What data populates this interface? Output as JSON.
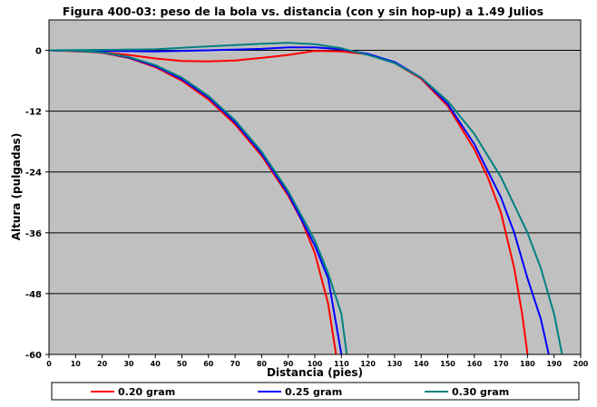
{
  "chart_data": {
    "type": "line",
    "title": "Figura 400-03: peso de la bola vs. distancia (con y sin hop-up) a 1.49 Julios",
    "xlabel": "Distancia (pies)",
    "ylabel": "Altura (pulgadas)",
    "xlim": [
      0,
      200
    ],
    "ylim": [
      -60,
      6
    ],
    "x_ticks": [
      "0",
      "10",
      "20",
      "30",
      "40",
      "50",
      "60",
      "70",
      "80",
      "90",
      "100",
      "110",
      "120",
      "130",
      "140",
      "150",
      "160",
      "170",
      "180",
      "190",
      "200"
    ],
    "y_ticks": [
      "0",
      "-12",
      "-24",
      "-36",
      "-48",
      "-60"
    ],
    "grid": "horizontal",
    "plot_background": "#c0c0c0",
    "legend_position": "bottom",
    "series": [
      {
        "name": "0.20 gram",
        "color": "#ff0000",
        "role": "sin hop-up",
        "points": [
          [
            0,
            0
          ],
          [
            10,
            -0.1
          ],
          [
            20,
            -0.5
          ],
          [
            30,
            -1.5
          ],
          [
            40,
            -3.3
          ],
          [
            50,
            -6.0
          ],
          [
            60,
            -9.7
          ],
          [
            70,
            -14.6
          ],
          [
            80,
            -20.8
          ],
          [
            90,
            -28.7
          ],
          [
            95,
            -33.5
          ],
          [
            100,
            -40.0
          ],
          [
            105,
            -50.0
          ],
          [
            108,
            -60.0
          ]
        ]
      },
      {
        "name": "0.20 gram",
        "color": "#ff0000",
        "role": "con hop-up",
        "points": [
          [
            0,
            0
          ],
          [
            20,
            -0.4
          ],
          [
            30,
            -0.9
          ],
          [
            40,
            -1.6
          ],
          [
            50,
            -2.1
          ],
          [
            60,
            -2.2
          ],
          [
            70,
            -2.0
          ],
          [
            80,
            -1.5
          ],
          [
            90,
            -0.9
          ],
          [
            100,
            -0.1
          ],
          [
            110,
            -0.2
          ],
          [
            120,
            -0.8
          ],
          [
            130,
            -2.5
          ],
          [
            140,
            -5.6
          ],
          [
            150,
            -11.0
          ],
          [
            160,
            -19.5
          ],
          [
            165,
            -25.0
          ],
          [
            170,
            -32.0
          ],
          [
            175,
            -43.0
          ],
          [
            178,
            -52.0
          ],
          [
            180,
            -60.0
          ]
        ]
      },
      {
        "name": "0.25 gram",
        "color": "#0000ff",
        "role": "sin hop-up",
        "points": [
          [
            0,
            0
          ],
          [
            10,
            -0.1
          ],
          [
            20,
            -0.4
          ],
          [
            30,
            -1.4
          ],
          [
            40,
            -3.1
          ],
          [
            50,
            -5.7
          ],
          [
            60,
            -9.3
          ],
          [
            70,
            -14.2
          ],
          [
            80,
            -20.4
          ],
          [
            90,
            -28.3
          ],
          [
            100,
            -38.5
          ],
          [
            105,
            -45.0
          ],
          [
            110,
            -60.0
          ]
        ]
      },
      {
        "name": "0.25 gram",
        "color": "#0000ff",
        "role": "con hop-up",
        "points": [
          [
            0,
            0
          ],
          [
            20,
            -0.1
          ],
          [
            40,
            -0.2
          ],
          [
            60,
            0.0
          ],
          [
            80,
            0.3
          ],
          [
            90,
            0.6
          ],
          [
            100,
            0.6
          ],
          [
            110,
            0.2
          ],
          [
            120,
            -0.7
          ],
          [
            130,
            -2.3
          ],
          [
            140,
            -5.4
          ],
          [
            150,
            -10.6
          ],
          [
            160,
            -18.5
          ],
          [
            170,
            -29.0
          ],
          [
            175,
            -36.0
          ],
          [
            180,
            -45.0
          ],
          [
            185,
            -53.0
          ],
          [
            188,
            -60.0
          ]
        ]
      },
      {
        "name": "0.30 gram",
        "color": "#008080",
        "role": "sin hop-up",
        "points": [
          [
            0,
            0
          ],
          [
            10,
            -0.1
          ],
          [
            20,
            -0.4
          ],
          [
            30,
            -1.3
          ],
          [
            40,
            -2.9
          ],
          [
            50,
            -5.4
          ],
          [
            60,
            -9.0
          ],
          [
            70,
            -13.8
          ],
          [
            80,
            -20.0
          ],
          [
            90,
            -27.8
          ],
          [
            100,
            -37.5
          ],
          [
            105,
            -44.0
          ],
          [
            110,
            -52.0
          ],
          [
            112,
            -60.0
          ]
        ]
      },
      {
        "name": "0.30 gram",
        "color": "#008080",
        "role": "con hop-up",
        "points": [
          [
            0,
            0
          ],
          [
            20,
            0.1
          ],
          [
            40,
            0.2
          ],
          [
            60,
            0.8
          ],
          [
            80,
            1.3
          ],
          [
            90,
            1.5
          ],
          [
            100,
            1.2
          ],
          [
            110,
            0.4
          ],
          [
            120,
            -0.9
          ],
          [
            130,
            -2.5
          ],
          [
            140,
            -5.4
          ],
          [
            150,
            -10.0
          ],
          [
            160,
            -16.5
          ],
          [
            170,
            -25.0
          ],
          [
            180,
            -36.0
          ],
          [
            185,
            -43.0
          ],
          [
            190,
            -52.0
          ],
          [
            193,
            -60.0
          ]
        ]
      }
    ],
    "legend": [
      {
        "label": "0.20 gram",
        "color": "#ff0000"
      },
      {
        "label": "0.25 gram",
        "color": "#0000ff"
      },
      {
        "label": "0.30 gram",
        "color": "#008080"
      }
    ]
  }
}
